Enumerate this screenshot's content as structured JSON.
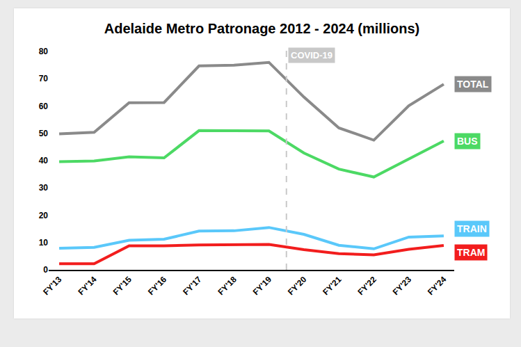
{
  "chart_data": {
    "type": "line",
    "title": "Adelaide Metro Patronage 2012 - 2024 (millions)",
    "categories": [
      "FY'13",
      "FY'14",
      "FY'15",
      "FY'16",
      "FY'17",
      "FY'18",
      "FY'19",
      "FY'20",
      "FY'21",
      "FY'22",
      "FY'23",
      "FY'24"
    ],
    "series": [
      {
        "name": "TOTAL",
        "color": "#8a8a8a",
        "values": [
          49.8,
          50.4,
          61.2,
          61.3,
          74.7,
          75.0,
          76.0,
          63.3,
          52.0,
          47.5,
          60.1,
          68.0
        ]
      },
      {
        "name": "BUS",
        "color": "#4cd964",
        "values": [
          39.6,
          39.9,
          41.4,
          41.0,
          51.0,
          51.0,
          50.9,
          42.8,
          36.9,
          34.0,
          40.6,
          47.2
        ]
      },
      {
        "name": "TRAIN",
        "color": "#5ac8fa",
        "values": [
          7.9,
          8.2,
          10.8,
          11.2,
          14.2,
          14.3,
          15.5,
          13.0,
          9.0,
          7.7,
          12.0,
          12.4
        ]
      },
      {
        "name": "TRAM",
        "color": "#f21d1d",
        "values": [
          2.2,
          2.2,
          8.8,
          8.8,
          9.1,
          9.3,
          9.3,
          7.4,
          5.9,
          5.5,
          7.5,
          8.9
        ]
      }
    ],
    "ylim": [
      0,
      80
    ],
    "yticks": [
      0,
      10,
      20,
      30,
      40,
      50,
      60,
      70,
      80
    ],
    "grid": false,
    "annotations": [
      {
        "text": "COVID-19",
        "between": [
          "FY'19",
          "FY'20"
        ]
      }
    ]
  }
}
